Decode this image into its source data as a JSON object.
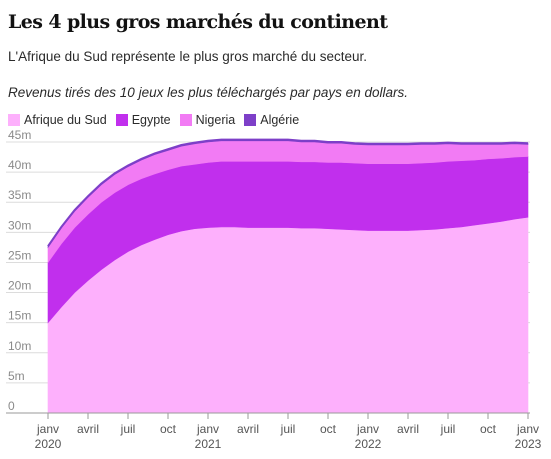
{
  "title": "Les 4 plus gros marchés du continent",
  "subtitle": "L'Afrique du Sud représente le plus gros marché du secteur.",
  "description": "Revenus tirés des 10 jeux les plus téléchargés par pays en dollars.",
  "colors": {
    "afrique_du_sud": "#fdb0fc",
    "egypte": "#c12fed",
    "nigeria": "#f27bf4",
    "algerie": "#7d3fc8"
  },
  "chart_data": {
    "type": "area",
    "stacked": true,
    "x": [
      "2020-01",
      "2020-02",
      "2020-03",
      "2020-04",
      "2020-05",
      "2020-06",
      "2020-07",
      "2020-08",
      "2020-09",
      "2020-10",
      "2020-11",
      "2020-12",
      "2021-01",
      "2021-02",
      "2021-03",
      "2021-04",
      "2021-05",
      "2021-06",
      "2021-07",
      "2021-08",
      "2021-09",
      "2021-10",
      "2021-11",
      "2021-12",
      "2022-01",
      "2022-02",
      "2022-03",
      "2022-04",
      "2022-05",
      "2022-06",
      "2022-07",
      "2022-08",
      "2022-09",
      "2022-10",
      "2022-11",
      "2022-12",
      "2023-01"
    ],
    "x_ticks": [
      "janv",
      "avril",
      "juil",
      "oct",
      "janv",
      "avril",
      "juil",
      "oct",
      "janv",
      "avril",
      "juil",
      "oct",
      "janv"
    ],
    "x_tick_years": [
      "2020",
      "",
      "",
      "",
      "2021",
      "",
      "",
      "",
      "2022",
      "",
      "",
      "",
      "2023"
    ],
    "series": [
      {
        "name": "Afrique du Sud",
        "values": [
          15.0,
          17.6,
          20.0,
          22.0,
          23.8,
          25.4,
          26.8,
          27.9,
          28.8,
          29.6,
          30.2,
          30.6,
          30.8,
          30.9,
          30.9,
          30.8,
          30.8,
          30.8,
          30.8,
          30.7,
          30.7,
          30.6,
          30.5,
          30.4,
          30.3,
          30.3,
          30.3,
          30.3,
          30.4,
          30.5,
          30.7,
          30.9,
          31.2,
          31.5,
          31.8,
          32.2,
          32.5
        ]
      },
      {
        "name": "Egypte",
        "values": [
          10.0,
          10.5,
          10.8,
          11.0,
          11.2,
          11.2,
          11.1,
          11.0,
          10.9,
          10.8,
          10.8,
          10.7,
          10.8,
          10.9,
          10.9,
          11.0,
          11.0,
          11.0,
          11.0,
          11.0,
          11.0,
          11.0,
          11.1,
          11.1,
          11.1,
          11.1,
          11.1,
          11.1,
          11.1,
          11.1,
          11.1,
          11.0,
          10.8,
          10.7,
          10.5,
          10.3,
          10.1
        ]
      },
      {
        "name": "Nigeria",
        "values": [
          2.5,
          2.6,
          2.7,
          2.8,
          2.9,
          3.0,
          3.0,
          3.1,
          3.2,
          3.2,
          3.3,
          3.4,
          3.4,
          3.4,
          3.4,
          3.4,
          3.4,
          3.4,
          3.4,
          3.3,
          3.3,
          3.2,
          3.2,
          3.1,
          3.1,
          3.1,
          3.1,
          3.1,
          3.1,
          3.0,
          2.9,
          2.7,
          2.6,
          2.4,
          2.3,
          2.2,
          2.0
        ]
      },
      {
        "name": "Algérie",
        "values": [
          0.2,
          0.2,
          0.2,
          0.2,
          0.2,
          0.2,
          0.2,
          0.2,
          0.2,
          0.2,
          0.2,
          0.2,
          0.2,
          0.2,
          0.2,
          0.2,
          0.2,
          0.2,
          0.2,
          0.2,
          0.2,
          0.2,
          0.2,
          0.2,
          0.2,
          0.2,
          0.2,
          0.2,
          0.2,
          0.2,
          0.2,
          0.2,
          0.2,
          0.2,
          0.2,
          0.2,
          0.2
        ]
      }
    ],
    "y_ticks": [
      "0",
      "5m",
      "10m",
      "15m",
      "20m",
      "25m",
      "30m",
      "35m",
      "40m",
      "45m"
    ],
    "ylim": [
      0,
      45000000
    ],
    "grid": true,
    "legend": "top-left"
  }
}
